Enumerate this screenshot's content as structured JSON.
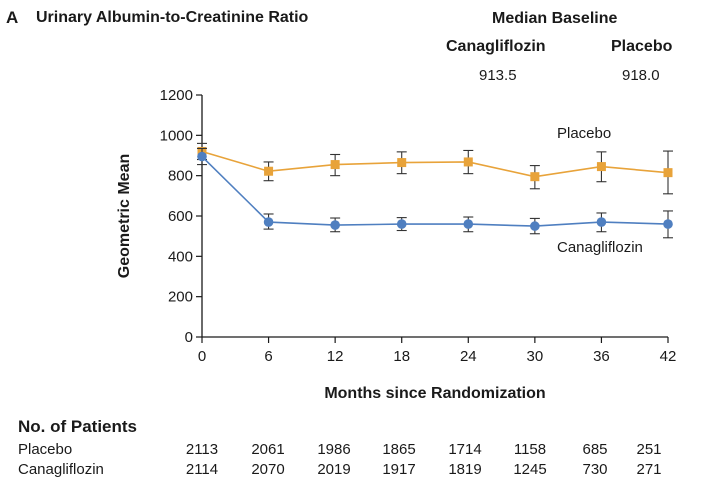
{
  "panel_letter": "A",
  "median_baseline": {
    "title": "Median Baseline",
    "headers": [
      "Canagliflozin",
      "Placebo"
    ],
    "values": [
      "913.5",
      "918.0"
    ]
  },
  "patients": {
    "title": "No. of Patients",
    "rows": [
      {
        "label": "Placebo",
        "counts": [
          "2113",
          "2061",
          "1986",
          "1865",
          "1714",
          "1158",
          "685",
          "251"
        ]
      },
      {
        "label": "Canagliflozin",
        "counts": [
          "2114",
          "2070",
          "2019",
          "1917",
          "1819",
          "1245",
          "730",
          "271"
        ]
      }
    ]
  },
  "chart_data": {
    "type": "line",
    "title": "Urinary Albumin-to-Creatinine Ratio",
    "xlabel": "Months since Randomization",
    "ylabel": "Geometric Mean",
    "x": [
      0,
      6,
      12,
      18,
      24,
      30,
      36,
      42
    ],
    "xlim": [
      0,
      42
    ],
    "ylim": [
      0,
      1200
    ],
    "yticks": [
      0,
      200,
      400,
      600,
      800,
      1000,
      1200
    ],
    "grid": false,
    "series": [
      {
        "name": "Placebo",
        "color": "#e8a33a",
        "marker": "square",
        "values": [
          920,
          822,
          855,
          865,
          868,
          795,
          845,
          815
        ],
        "err_low": [
          880,
          775,
          800,
          810,
          810,
          735,
          770,
          710
        ],
        "err_high": [
          960,
          868,
          905,
          918,
          925,
          850,
          918,
          922
        ]
      },
      {
        "name": "Canagliflozin",
        "color": "#4f7fc0",
        "marker": "circle",
        "values": [
          895,
          570,
          555,
          560,
          560,
          550,
          570,
          560
        ],
        "err_low": [
          855,
          535,
          522,
          528,
          522,
          512,
          522,
          492
        ],
        "err_high": [
          935,
          610,
          590,
          592,
          595,
          588,
          615,
          625
        ]
      }
    ]
  }
}
